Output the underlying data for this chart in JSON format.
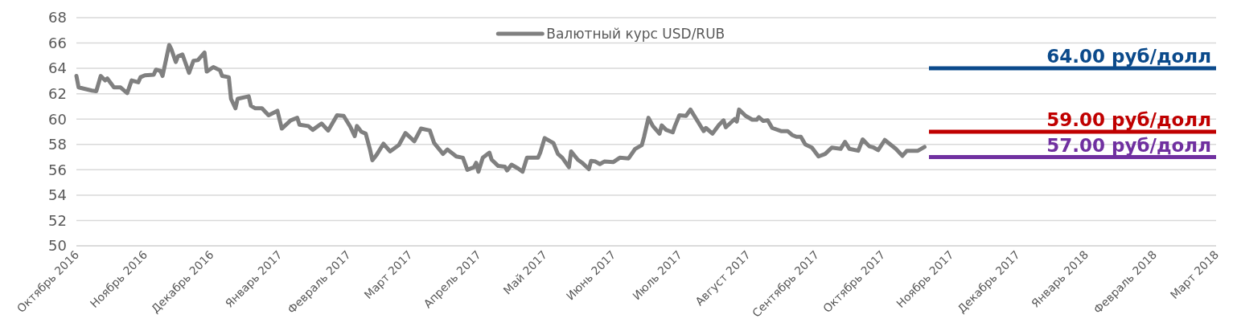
{
  "chart_data": {
    "type": "line",
    "xlim": [
      "2016-10-01",
      "2018-03-01"
    ],
    "xticks": [
      {
        "value": "2016-10-01",
        "label": "Октябрь 2016"
      },
      {
        "value": "2016-11-01",
        "label": "Ноябрь 2016"
      },
      {
        "value": "2016-12-01",
        "label": "Декабрь 2016"
      },
      {
        "value": "2017-01-01",
        "label": "Январь 2017"
      },
      {
        "value": "2017-02-01",
        "label": "Февраль 2017"
      },
      {
        "value": "2017-03-01",
        "label": "Март 2017"
      },
      {
        "value": "2017-04-01",
        "label": "Апрель 2017"
      },
      {
        "value": "2017-05-01",
        "label": "Май 2017"
      },
      {
        "value": "2017-06-01",
        "label": "Июнь 2017"
      },
      {
        "value": "2017-07-01",
        "label": "Июль 2017"
      },
      {
        "value": "2017-08-01",
        "label": "Август 2017"
      },
      {
        "value": "2017-09-01",
        "label": "Сентябрь 2017"
      },
      {
        "value": "2017-10-01",
        "label": "Октябрь 2017"
      },
      {
        "value": "2017-11-01",
        "label": "Ноябрь 2017"
      },
      {
        "value": "2017-12-01",
        "label": "Декабрь 2017"
      },
      {
        "value": "2018-01-01",
        "label": "Январь 2018"
      },
      {
        "value": "2018-02-01",
        "label": "Февраль 2018"
      },
      {
        "value": "2018-03-01",
        "label": "Март 2018"
      }
    ],
    "ylim": [
      50,
      68
    ],
    "yticks": [
      50,
      52,
      54,
      56,
      58,
      60,
      62,
      64,
      66,
      68
    ],
    "grid": "y",
    "legend": "top",
    "x": [
      "2016-10-01",
      "2016-10-02",
      "2016-10-08",
      "2016-10-10",
      "2016-10-12",
      "2016-10-14",
      "2016-10-15",
      "2016-10-18",
      "2016-10-21",
      "2016-10-24",
      "2016-10-26",
      "2016-10-29",
      "2016-10-30",
      "2016-11-01",
      "2016-11-05",
      "2016-11-06",
      "2016-11-08",
      "2016-11-09",
      "2016-11-12",
      "2016-11-13",
      "2016-11-15",
      "2016-11-16",
      "2016-11-18",
      "2016-11-21",
      "2016-11-23",
      "2016-11-25",
      "2016-11-28",
      "2016-11-29",
      "2016-12-02",
      "2016-12-05",
      "2016-12-06",
      "2016-12-09",
      "2016-12-10",
      "2016-12-12",
      "2016-12-13",
      "2016-12-18",
      "2016-12-19",
      "2016-12-21",
      "2016-12-24",
      "2016-12-27",
      "2016-12-31",
      "2017-01-02",
      "2017-01-06",
      "2017-01-09",
      "2017-01-10",
      "2017-01-14",
      "2017-01-16",
      "2017-01-20",
      "2017-01-23",
      "2017-01-27",
      "2017-01-30",
      "2017-02-02",
      "2017-02-04",
      "2017-02-05",
      "2017-02-07",
      "2017-02-09",
      "2017-02-11",
      "2017-02-12",
      "2017-02-14",
      "2017-02-17",
      "2017-02-20",
      "2017-02-24",
      "2017-02-27",
      "2017-03-03",
      "2017-03-06",
      "2017-03-10",
      "2017-03-12",
      "2017-03-16",
      "2017-03-18",
      "2017-03-22",
      "2017-03-25",
      "2017-03-27",
      "2017-03-30",
      "2017-03-31",
      "2017-04-01",
      "2017-04-03",
      "2017-04-06",
      "2017-04-07",
      "2017-04-10",
      "2017-04-13",
      "2017-04-14",
      "2017-04-16",
      "2017-04-19",
      "2017-04-21",
      "2017-04-23",
      "2017-04-28",
      "2017-04-29",
      "2017-05-01",
      "2017-05-05",
      "2017-05-07",
      "2017-05-09",
      "2017-05-12",
      "2017-05-13",
      "2017-05-16",
      "2017-05-18",
      "2017-05-21",
      "2017-05-22",
      "2017-05-24",
      "2017-05-26",
      "2017-05-28",
      "2017-06-01",
      "2017-06-04",
      "2017-06-08",
      "2017-06-11",
      "2017-06-14",
      "2017-06-15",
      "2017-06-17",
      "2017-06-19",
      "2017-06-22",
      "2017-06-23",
      "2017-06-25",
      "2017-06-28",
      "2017-06-29",
      "2017-07-01",
      "2017-07-04",
      "2017-07-06",
      "2017-07-09",
      "2017-07-12",
      "2017-07-13",
      "2017-07-16",
      "2017-07-19",
      "2017-07-21",
      "2017-07-22",
      "2017-07-26",
      "2017-07-27",
      "2017-07-28",
      "2017-07-31",
      "2017-08-03",
      "2017-08-05",
      "2017-08-06",
      "2017-08-08",
      "2017-08-10",
      "2017-08-12",
      "2017-08-16",
      "2017-08-19",
      "2017-08-21",
      "2017-08-23",
      "2017-08-25",
      "2017-08-27",
      "2017-08-30",
      "2017-09-02",
      "2017-09-05",
      "2017-09-08",
      "2017-09-12",
      "2017-09-14",
      "2017-09-16",
      "2017-09-20",
      "2017-09-22",
      "2017-09-25",
      "2017-09-27",
      "2017-09-29",
      "2017-10-02",
      "2017-10-07",
      "2017-10-10",
      "2017-10-12",
      "2017-10-17",
      "2017-10-20"
    ],
    "series": [
      {
        "name": "Валютный курс USD/RUB",
        "color": "#808080",
        "values": [
          63.4,
          62.5,
          62.25,
          62.2,
          63.4,
          63.05,
          63.2,
          62.5,
          62.5,
          62.05,
          63.05,
          62.9,
          63.3,
          63.45,
          63.5,
          63.9,
          63.8,
          63.4,
          65.85,
          65.5,
          64.5,
          64.95,
          65.1,
          63.65,
          64.6,
          64.65,
          65.25,
          63.75,
          64.1,
          63.85,
          63.4,
          63.3,
          61.6,
          60.85,
          61.6,
          61.8,
          61.05,
          60.85,
          60.85,
          60.3,
          60.65,
          59.25,
          59.9,
          60.1,
          59.55,
          59.45,
          59.15,
          59.65,
          59.1,
          60.3,
          60.25,
          59.4,
          58.65,
          59.45,
          59.0,
          58.85,
          57.55,
          56.75,
          57.2,
          58.05,
          57.45,
          57.95,
          58.9,
          58.25,
          59.25,
          59.1,
          58.1,
          57.25,
          57.6,
          57.05,
          56.95,
          56.0,
          56.2,
          56.55,
          55.85,
          56.95,
          57.35,
          56.8,
          56.3,
          56.25,
          55.95,
          56.4,
          56.1,
          55.85,
          56.95,
          56.95,
          57.35,
          58.5,
          58.1,
          57.25,
          56.95,
          56.2,
          57.45,
          56.8,
          56.55,
          56.05,
          56.7,
          56.65,
          56.45,
          56.65,
          56.6,
          56.95,
          56.9,
          57.65,
          57.95,
          58.6,
          60.1,
          59.45,
          58.85,
          59.5,
          59.15,
          58.95,
          59.45,
          60.3,
          60.25,
          60.75,
          59.9,
          59.05,
          59.3,
          58.85,
          59.55,
          59.9,
          59.35,
          60.0,
          59.8,
          60.75,
          60.25,
          59.95,
          59.95,
          60.15,
          59.85,
          59.9,
          59.3,
          59.05,
          59.05,
          58.75,
          58.6,
          58.6,
          58.0,
          57.75,
          57.05,
          57.25,
          57.75,
          57.65,
          58.2,
          57.65,
          57.5,
          58.4,
          57.85,
          57.75,
          57.55,
          58.35,
          57.65,
          57.1,
          57.5,
          57.5,
          57.8
        ]
      },
      {
        "name": "64.00 руб/долл",
        "color": "#0b4a8b",
        "x": [
          "2017-10-22",
          "2018-03-01"
        ],
        "values": [
          64,
          64
        ]
      },
      {
        "name": "59.00 руб/долл",
        "color": "#c00000",
        "x": [
          "2017-10-22",
          "2018-03-01"
        ],
        "values": [
          59,
          59
        ]
      },
      {
        "name": "57.00 руб/долл",
        "color": "#7030a0",
        "x": [
          "2017-10-22",
          "2018-03-01"
        ],
        "values": [
          57,
          57
        ]
      }
    ]
  }
}
